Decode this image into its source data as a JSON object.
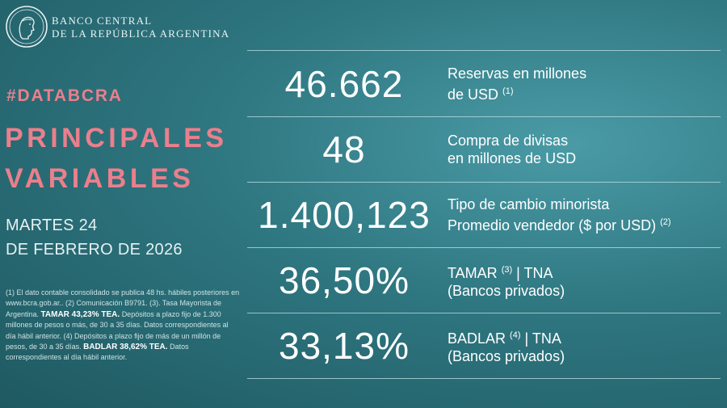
{
  "header": {
    "bank_name_line1": "BANCO CENTRAL",
    "bank_name_line2": "DE LA REPÚBLICA ARGENTINA"
  },
  "hashtag": "#DATABCRA",
  "title": {
    "line1": "PRINCIPALES",
    "line2": "VARIABLES"
  },
  "date": {
    "line1": "MARTES 24",
    "line2": "DE FEBRERO DE 2026"
  },
  "footnote": {
    "part1": "(1) El dato contable consolidado se publica 48 hs. hábiles posteriores en www.bcra.gob.ar.. (2) Comunicación B9791. (3). Tasa Mayorista de Argentina.",
    "tamar_bold": "TAMAR 43,23% TEA.",
    "part2": "Depósitos a plazo fijo de 1.300 millones de pesos o más, de 30 a 35 días. Datos correspondientes al día hábil anterior. (4) Depósitos a plazo fijo de más de un millón de pesos, de 30 a 35 días.",
    "badlar_bold": "BADLAR 38,62% TEA.",
    "part3": "Datos correspondientes al día hábil anterior."
  },
  "indicators": [
    {
      "value": "46.662",
      "label_line1": "Reservas en millones",
      "label_line2": "de USD",
      "label_line2_sup": "(1)"
    },
    {
      "value": "48",
      "label_line1": "Compra de divisas",
      "label_line2": "en millones de USD"
    },
    {
      "value": "1.400,123",
      "label_line1": "Tipo de cambio minorista",
      "label_line2": "Promedio vendedor ($ por USD)",
      "label_line2_sup": "(2)"
    },
    {
      "value": "36,50%",
      "label_line1_pre": "TAMAR",
      "label_line1_sup": "(3)",
      "label_line1_post": "| TNA",
      "label_line2": "(Bancos privados)"
    },
    {
      "value": "33,13%",
      "label_line1_pre": "BADLAR",
      "label_line1_sup": "(4)",
      "label_line1_post": "| TNA",
      "label_line2": "(Bancos privados)"
    }
  ]
}
